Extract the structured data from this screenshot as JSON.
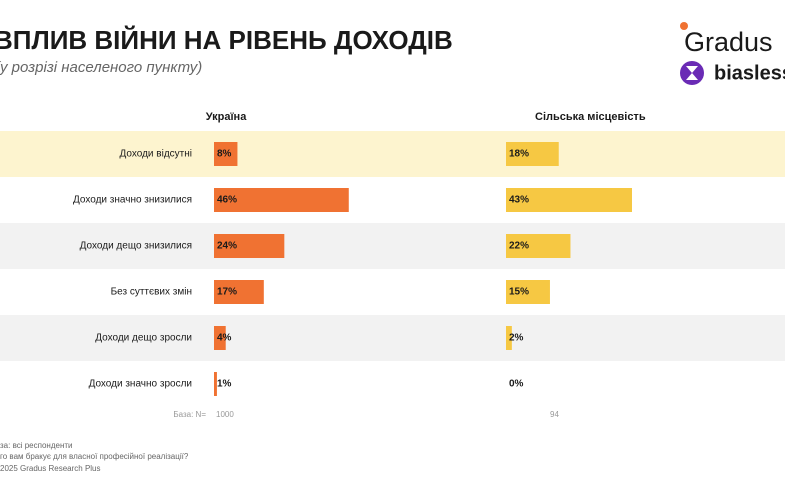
{
  "chart_data": {
    "type": "bar",
    "title": "ВПЛИВ ВІЙНИ НА РІВЕНЬ ДОХОДІВ",
    "subtitle": "(у розрізі населеного пункту)",
    "categories": [
      "Доходи відсутні",
      "Доходи значно знизилися",
      "Доходи дещо знизилися",
      "Без суттєвих змін",
      "Доходи дещо зросли",
      "Доходи значно зросли"
    ],
    "series": [
      {
        "name": "Україна",
        "color": "#f07232",
        "values": [
          8,
          46,
          24,
          17,
          4,
          1
        ],
        "value_labels": [
          "8%",
          "46%",
          "24%",
          "17%",
          "4%",
          "1%"
        ],
        "base": 1000
      },
      {
        "name": "Сільська місцевість",
        "color": "#f6c843",
        "values": [
          18,
          43,
          22,
          15,
          2,
          0
        ],
        "value_labels": [
          "18%",
          "43%",
          "22%",
          "15%",
          "2%",
          "0%"
        ],
        "base": 94
      }
    ],
    "base_label": "База: N=",
    "footnotes": [
      "за: всі респонденти",
      "го вам бракує для власної професійної реалізації?",
      "2025 Gradus Research Plus"
    ]
  },
  "logos": {
    "gradus": "Gradus",
    "biasless": "biasless"
  }
}
